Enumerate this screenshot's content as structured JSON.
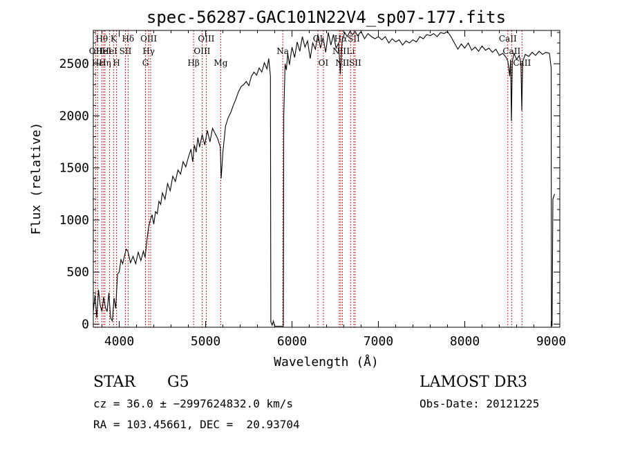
{
  "chart_data": {
    "type": "line",
    "title": "spec-56287-GAC101N22V4_sp07-177.fits",
    "xlabel": "Wavelength (Å)",
    "ylabel": "Flux (relative)",
    "xlim": [
      3700,
      9100
    ],
    "ylim": [
      -30,
      2820
    ],
    "x_ticks": [
      4000,
      5000,
      6000,
      7000,
      8000,
      9000
    ],
    "y_ticks": [
      0,
      500,
      1000,
      1500,
      2000,
      2500
    ],
    "series": [
      {
        "points": [
          [
            3700,
            120
          ],
          [
            3720,
            280
          ],
          [
            3740,
            60
          ],
          [
            3760,
            330
          ],
          [
            3780,
            180
          ],
          [
            3800,
            120
          ],
          [
            3820,
            260
          ],
          [
            3840,
            160
          ],
          [
            3860,
            120
          ],
          [
            3880,
            300
          ],
          [
            3900,
            60
          ],
          [
            3920,
            30
          ],
          [
            3940,
            250
          ],
          [
            3960,
            150
          ],
          [
            3980,
            480
          ],
          [
            4000,
            500
          ],
          [
            4020,
            620
          ],
          [
            4040,
            580
          ],
          [
            4060,
            650
          ],
          [
            4080,
            720
          ],
          [
            4100,
            700
          ],
          [
            4130,
            590
          ],
          [
            4160,
            650
          ],
          [
            4190,
            580
          ],
          [
            4220,
            690
          ],
          [
            4250,
            610
          ],
          [
            4280,
            700
          ],
          [
            4300,
            640
          ],
          [
            4320,
            800
          ],
          [
            4340,
            930
          ],
          [
            4360,
            1000
          ],
          [
            4380,
            1050
          ],
          [
            4400,
            960
          ],
          [
            4420,
            1080
          ],
          [
            4440,
            1060
          ],
          [
            4460,
            1180
          ],
          [
            4480,
            1150
          ],
          [
            4500,
            1260
          ],
          [
            4530,
            1200
          ],
          [
            4560,
            1350
          ],
          [
            4590,
            1280
          ],
          [
            4620,
            1420
          ],
          [
            4650,
            1370
          ],
          [
            4680,
            1480
          ],
          [
            4710,
            1440
          ],
          [
            4740,
            1560
          ],
          [
            4770,
            1510
          ],
          [
            4800,
            1600
          ],
          [
            4830,
            1680
          ],
          [
            4850,
            1560
          ],
          [
            4870,
            1720
          ],
          [
            4890,
            1650
          ],
          [
            4910,
            1790
          ],
          [
            4930,
            1700
          ],
          [
            4960,
            1820
          ],
          [
            4990,
            1720
          ],
          [
            5020,
            1860
          ],
          [
            5050,
            1750
          ],
          [
            5080,
            1880
          ],
          [
            5110,
            1830
          ],
          [
            5140,
            1780
          ],
          [
            5170,
            1700
          ],
          [
            5180,
            1400
          ],
          [
            5200,
            1650
          ],
          [
            5230,
            1900
          ],
          [
            5260,
            1980
          ],
          [
            5290,
            2030
          ],
          [
            5320,
            2100
          ],
          [
            5350,
            2160
          ],
          [
            5380,
            2230
          ],
          [
            5410,
            2280
          ],
          [
            5440,
            2300
          ],
          [
            5470,
            2330
          ],
          [
            5500,
            2290
          ],
          [
            5530,
            2380
          ],
          [
            5560,
            2420
          ],
          [
            5590,
            2390
          ],
          [
            5620,
            2460
          ],
          [
            5650,
            2420
          ],
          [
            5680,
            2510
          ],
          [
            5710,
            2450
          ],
          [
            5730,
            2550
          ],
          [
            5750,
            2380
          ],
          [
            5755,
            20
          ],
          [
            5770,
            -10
          ],
          [
            5785,
            30
          ],
          [
            5800,
            -20
          ],
          [
            5900,
            -20
          ],
          [
            5905,
            2000
          ],
          [
            5920,
            2500
          ],
          [
            5935,
            2440
          ],
          [
            5950,
            2600
          ],
          [
            5970,
            2490
          ],
          [
            6000,
            2660
          ],
          [
            6030,
            2560
          ],
          [
            6060,
            2710
          ],
          [
            6090,
            2620
          ],
          [
            6120,
            2760
          ],
          [
            6150,
            2660
          ],
          [
            6180,
            2720
          ],
          [
            6210,
            2550
          ],
          [
            6240,
            2700
          ],
          [
            6270,
            2640
          ],
          [
            6300,
            2780
          ],
          [
            6330,
            2650
          ],
          [
            6360,
            2750
          ],
          [
            6390,
            2610
          ],
          [
            6420,
            2800
          ],
          [
            6450,
            2680
          ],
          [
            6480,
            2780
          ],
          [
            6510,
            2650
          ],
          [
            6540,
            2700
          ],
          [
            6560,
            2400
          ],
          [
            6580,
            2720
          ],
          [
            6610,
            2800
          ],
          [
            6640,
            2760
          ],
          [
            6670,
            2810
          ],
          [
            6700,
            2780
          ],
          [
            6730,
            2810
          ],
          [
            6760,
            2770
          ],
          [
            6800,
            2810
          ],
          [
            6840,
            2740
          ],
          [
            6880,
            2790
          ],
          [
            6920,
            2760
          ],
          [
            6960,
            2740
          ],
          [
            7000,
            2760
          ],
          [
            7040,
            2730
          ],
          [
            7080,
            2760
          ],
          [
            7120,
            2700
          ],
          [
            7160,
            2740
          ],
          [
            7200,
            2710
          ],
          [
            7240,
            2730
          ],
          [
            7280,
            2680
          ],
          [
            7320,
            2720
          ],
          [
            7360,
            2700
          ],
          [
            7400,
            2730
          ],
          [
            7440,
            2710
          ],
          [
            7480,
            2760
          ],
          [
            7520,
            2740
          ],
          [
            7560,
            2780
          ],
          [
            7600,
            2770
          ],
          [
            7640,
            2790
          ],
          [
            7680,
            2760
          ],
          [
            7720,
            2800
          ],
          [
            7760,
            2790
          ],
          [
            7800,
            2810
          ],
          [
            7840,
            2760
          ],
          [
            7880,
            2700
          ],
          [
            7920,
            2640
          ],
          [
            7960,
            2690
          ],
          [
            8000,
            2650
          ],
          [
            8040,
            2700
          ],
          [
            8080,
            2630
          ],
          [
            8120,
            2660
          ],
          [
            8160,
            2620
          ],
          [
            8200,
            2670
          ],
          [
            8240,
            2630
          ],
          [
            8280,
            2650
          ],
          [
            8320,
            2610
          ],
          [
            8360,
            2640
          ],
          [
            8400,
            2580
          ],
          [
            8440,
            2600
          ],
          [
            8480,
            2560
          ],
          [
            8500,
            2520
          ],
          [
            8520,
            2380
          ],
          [
            8530,
            2540
          ],
          [
            8540,
            1950
          ],
          [
            8550,
            2520
          ],
          [
            8570,
            2600
          ],
          [
            8600,
            2540
          ],
          [
            8630,
            2580
          ],
          [
            8650,
            2500
          ],
          [
            8660,
            2050
          ],
          [
            8670,
            2520
          ],
          [
            8700,
            2590
          ],
          [
            8740,
            2570
          ],
          [
            8780,
            2610
          ],
          [
            8820,
            2580
          ],
          [
            8860,
            2620
          ],
          [
            8900,
            2590
          ],
          [
            8940,
            2610
          ],
          [
            8980,
            2600
          ],
          [
            9000,
            2460
          ],
          [
            9003,
            10
          ],
          [
            9010,
            -20
          ],
          [
            9020,
            1200
          ],
          [
            9040,
            1250
          ]
        ]
      }
    ],
    "line_marks": [
      {
        "x": 3727,
        "labels": [
          "OII"
        ],
        "row": 1
      },
      {
        "x": 3750,
        "labels": [
          "Hε"
        ],
        "row": 2
      },
      {
        "x": 3798,
        "labels": [
          "Hθ"
        ],
        "row": 0
      },
      {
        "x": 3820,
        "labels": [
          "HeI"
        ],
        "row": 1
      },
      {
        "x": 3835,
        "labels": [
          "Hη"
        ],
        "row": 2
      },
      {
        "x": 3889,
        "labels": [
          "HeI"
        ],
        "row": 1
      },
      {
        "x": 3934,
        "labels": [
          "K"
        ],
        "row": 0
      },
      {
        "x": 3969,
        "labels": [
          "H"
        ],
        "row": 2
      },
      {
        "x": 4072,
        "labels": [
          "SII"
        ],
        "row": 1
      },
      {
        "x": 4102,
        "labels": [
          "Hδ"
        ],
        "row": 0
      },
      {
        "x": 4304,
        "labels": [
          "G"
        ],
        "row": 2
      },
      {
        "x": 4341,
        "labels": [
          "OIII",
          "Hγ"
        ],
        "row": 0
      },
      {
        "x": 4363,
        "labels": [],
        "row": 0
      },
      {
        "x": 4861,
        "labels": [
          "Hβ"
        ],
        "row": 2
      },
      {
        "x": 4959,
        "labels": [
          "OIII"
        ],
        "row": 1
      },
      {
        "x": 5007,
        "labels": [
          "OIII"
        ],
        "row": 0
      },
      {
        "x": 5175,
        "labels": [
          "Mg"
        ],
        "row": 2
      },
      {
        "x": 5893,
        "labels": [
          "Na"
        ],
        "row": 1
      },
      {
        "x": 6300,
        "labels": [
          "OI"
        ],
        "row": 0
      },
      {
        "x": 6363,
        "labels": [
          "OI"
        ],
        "row": 2
      },
      {
        "x": 6548,
        "labels": [
          "NII"
        ],
        "row": 1
      },
      {
        "x": 6563,
        "labels": [
          "Hα"
        ],
        "row": 0
      },
      {
        "x": 6583,
        "labels": [
          "NII"
        ],
        "row": 2
      },
      {
        "x": 6678,
        "labels": [
          "Li"
        ],
        "row": 1
      },
      {
        "x": 6716,
        "labels": [
          "SII"
        ],
        "row": 0
      },
      {
        "x": 6731,
        "labels": [
          "SII"
        ],
        "row": 2
      },
      {
        "x": 8498,
        "labels": [
          "CaII"
        ],
        "row": 0
      },
      {
        "x": 8542,
        "labels": [
          "CaII"
        ],
        "row": 1
      },
      {
        "x": 8662,
        "labels": [
          "CaII"
        ],
        "row": 2
      }
    ]
  },
  "info": {
    "class_label": "STAR",
    "subclass": "G5",
    "survey": "LAMOST DR3",
    "cz": "cz = 36.0 ± −2997624832.0 km/s",
    "obs_date": "Obs-Date: 20121225",
    "coords": "RA = 103.45661, DEC =  20.93704"
  },
  "colors": {
    "spectrum": "#000000",
    "line_marks": "#cc0000",
    "axes": "#000000"
  }
}
